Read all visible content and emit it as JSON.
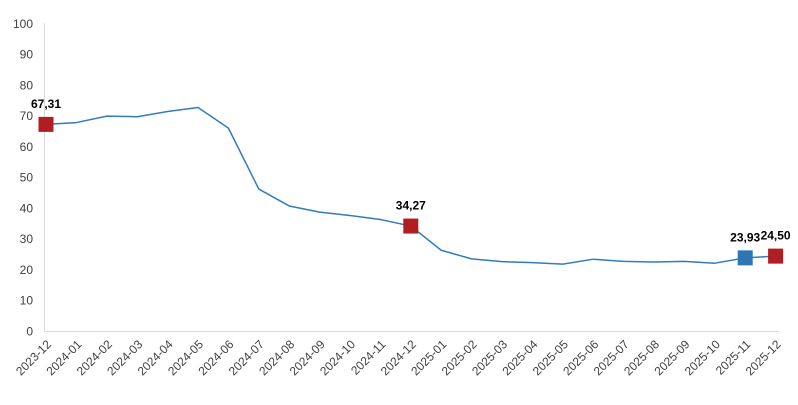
{
  "chart_data": {
    "type": "line",
    "title": "",
    "xlabel": "",
    "ylabel": "",
    "categories": [
      "2023-12",
      "2024-01",
      "2024-02",
      "2024-03",
      "2024-04",
      "2024-05",
      "2024-06",
      "2024-07",
      "2024-08",
      "2024-09",
      "2024-10",
      "2024-11",
      "2024-12",
      "2025-01",
      "2025-02",
      "2025-03",
      "2025-04",
      "2025-05",
      "2025-06",
      "2025-07",
      "2025-08",
      "2025-09",
      "2025-10",
      "2025-11",
      "2025-12"
    ],
    "values": [
      67.31,
      67.9,
      70.0,
      69.8,
      71.5,
      72.8,
      66.1,
      46.3,
      40.8,
      38.8,
      37.7,
      36.4,
      34.27,
      26.4,
      23.6,
      22.7,
      22.4,
      21.9,
      23.5,
      22.8,
      22.6,
      22.8,
      22.2,
      23.93,
      24.5
    ],
    "ylim": [
      0,
      100
    ],
    "ytick_step": 10,
    "ytick_labels": [
      "0",
      "10",
      "20",
      "30",
      "40",
      "50",
      "60",
      "70",
      "80",
      "90",
      "100"
    ],
    "grid": false,
    "legend": "none",
    "markers": [
      {
        "index": 0,
        "category": "2023-12",
        "value": 67.31,
        "label": "67,31",
        "color": "#B01E24",
        "shape": "square"
      },
      {
        "index": 12,
        "category": "2024-12",
        "value": 34.27,
        "label": "34,27",
        "color": "#B01E24",
        "shape": "square"
      },
      {
        "index": 23,
        "category": "2025-11",
        "value": 23.93,
        "label": "23,93",
        "color": "#2E75B6",
        "shape": "square"
      },
      {
        "index": 24,
        "category": "2025-12",
        "value": 24.5,
        "label": "24,50",
        "color": "#B01E24",
        "shape": "square"
      }
    ],
    "colors": {
      "line": "#2F7CBF",
      "axis": "#D9D9D9",
      "tick_text": "#404040",
      "marker_label_text": "#000000",
      "background": "#FFFFFF"
    }
  }
}
